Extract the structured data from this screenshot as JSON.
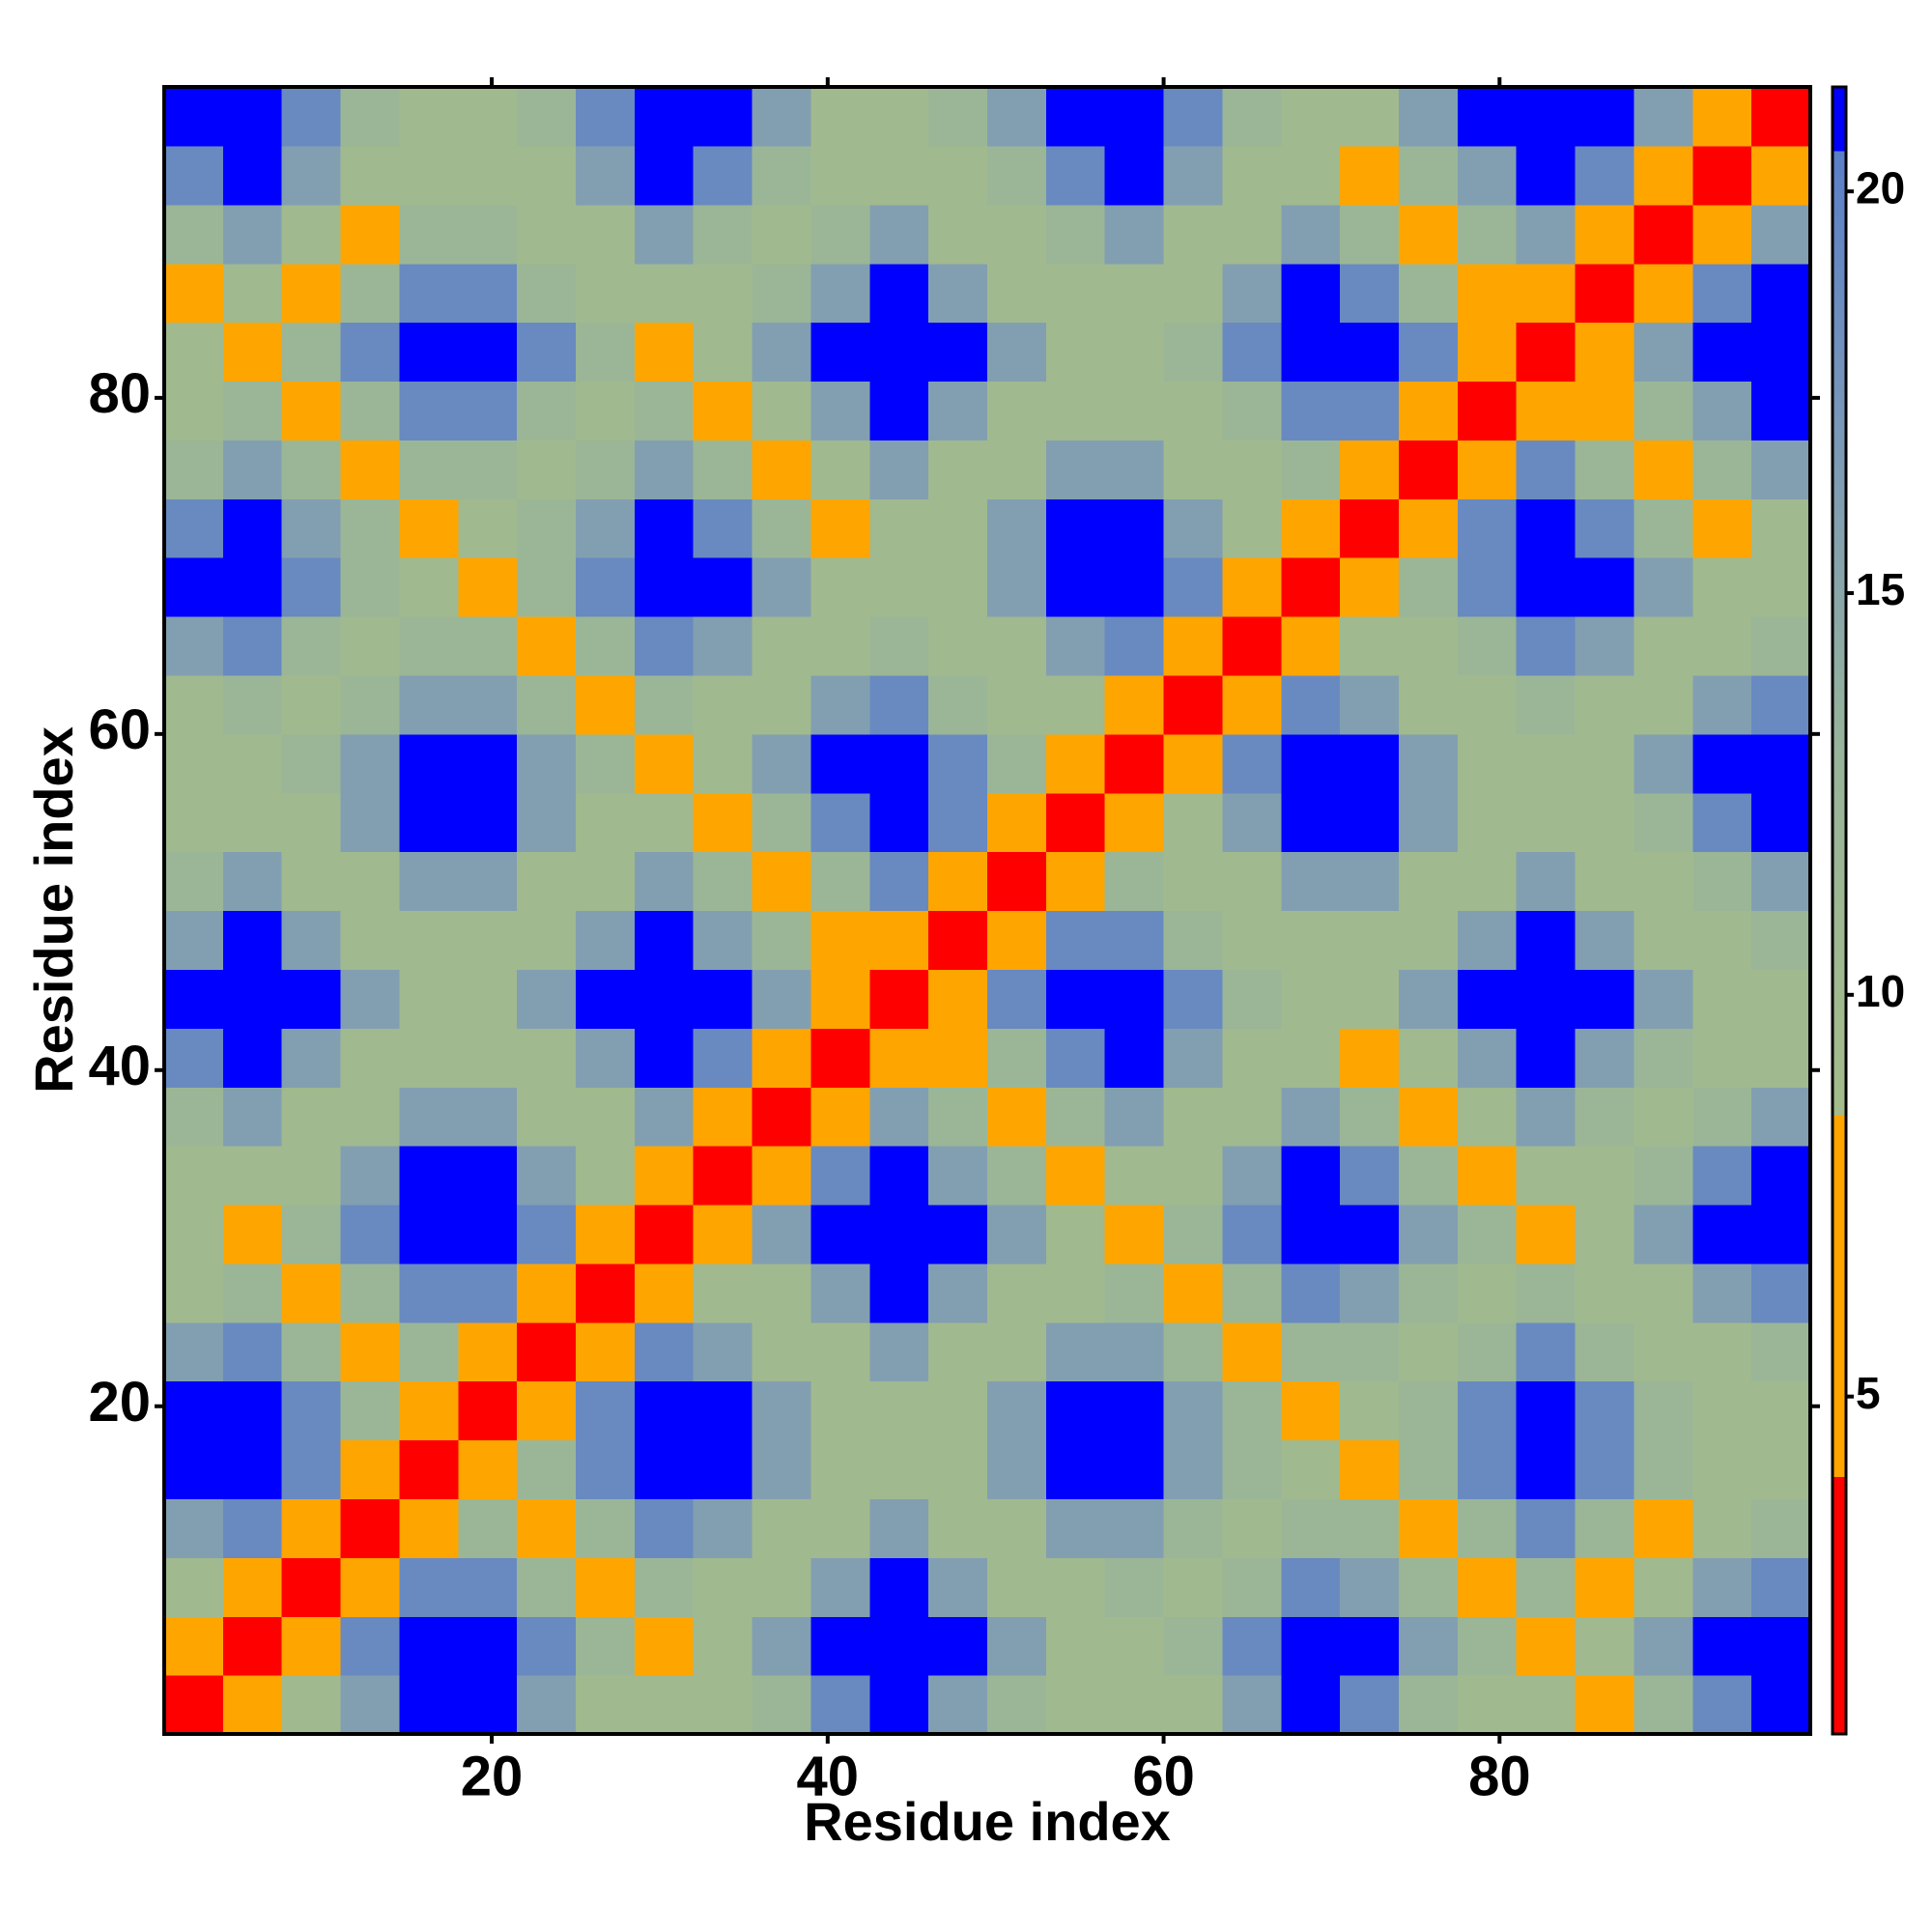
{
  "chart_data": {
    "type": "heatmap",
    "xlabel": "Residue index",
    "ylabel": "Residue index",
    "xlim": [
      0.5,
      98.5
    ],
    "ylim": [
      0.5,
      98.5
    ],
    "xticks": [
      20,
      40,
      60,
      80
    ],
    "yticks": [
      20,
      40,
      60,
      80
    ],
    "x": [
      2.25,
      5.75,
      9.25,
      12.75,
      16.25,
      19.75,
      23.25,
      26.75,
      30.25,
      33.75,
      37.25,
      40.75,
      44.25,
      47.75,
      51.25,
      54.75,
      58.25,
      61.75,
      65.25,
      68.75,
      72.25,
      75.75,
      79.25,
      82.75,
      86.25,
      89.75,
      93.25,
      96.75
    ],
    "y": [
      2.25,
      5.75,
      9.25,
      12.75,
      16.25,
      19.75,
      23.25,
      26.75,
      30.25,
      33.75,
      37.25,
      40.75,
      44.25,
      47.75,
      51.25,
      54.75,
      58.25,
      61.75,
      65.25,
      68.75,
      72.25,
      75.75,
      79.25,
      82.75,
      86.25,
      89.75,
      93.25,
      96.75
    ],
    "z": [
      [
        2,
        7,
        10,
        16,
        21,
        21,
        16,
        10,
        10,
        10,
        12,
        19,
        21,
        16,
        12,
        10,
        10,
        10,
        16,
        21,
        19,
        12,
        10,
        10,
        6,
        12,
        19,
        21
      ],
      [
        7,
        2,
        7,
        19,
        21,
        21,
        19,
        12,
        6,
        10,
        16,
        21,
        21,
        21,
        16,
        10,
        10,
        12,
        19,
        21,
        21,
        16,
        12,
        6,
        10,
        16,
        21,
        21
      ],
      [
        10,
        7,
        2,
        7,
        19,
        19,
        12,
        6,
        12,
        10,
        10,
        16,
        21,
        16,
        10,
        10,
        12,
        10,
        12,
        19,
        16,
        12,
        6,
        12,
        6,
        10,
        16,
        19
      ],
      [
        16,
        19,
        7,
        2,
        7,
        12,
        6,
        12,
        19,
        16,
        10,
        10,
        16,
        10,
        10,
        16,
        16,
        12,
        10,
        12,
        12,
        6,
        12,
        19,
        12,
        6,
        10,
        12
      ],
      [
        21,
        21,
        19,
        7,
        2,
        7,
        12,
        19,
        21,
        21,
        16,
        10,
        10,
        10,
        16,
        21,
        21,
        16,
        12,
        10,
        6,
        12,
        19,
        21,
        19,
        12,
        10,
        10
      ],
      [
        21,
        21,
        19,
        12,
        7,
        2,
        7,
        19,
        21,
        21,
        16,
        10,
        10,
        10,
        16,
        21,
        21,
        16,
        12,
        6,
        10,
        12,
        19,
        21,
        19,
        12,
        10,
        10
      ],
      [
        16,
        19,
        12,
        6,
        12,
        7,
        2,
        7,
        19,
        16,
        10,
        10,
        16,
        10,
        10,
        16,
        16,
        12,
        6,
        12,
        12,
        10,
        12,
        19,
        12,
        10,
        10,
        12
      ],
      [
        10,
        12,
        6,
        12,
        19,
        19,
        7,
        2,
        7,
        10,
        10,
        16,
        21,
        16,
        10,
        10,
        12,
        6,
        12,
        19,
        16,
        12,
        10,
        12,
        10,
        10,
        16,
        19
      ],
      [
        10,
        6,
        12,
        19,
        21,
        21,
        19,
        7,
        2,
        7,
        16,
        21,
        21,
        21,
        16,
        10,
        6,
        12,
        19,
        21,
        21,
        16,
        12,
        6,
        10,
        16,
        21,
        21
      ],
      [
        10,
        10,
        10,
        16,
        21,
        21,
        16,
        10,
        7,
        2,
        7,
        19,
        21,
        16,
        12,
        6,
        10,
        10,
        16,
        21,
        19,
        12,
        6,
        10,
        10,
        12,
        19,
        21
      ],
      [
        12,
        16,
        10,
        10,
        16,
        16,
        10,
        10,
        16,
        7,
        2,
        7,
        16,
        12,
        6,
        12,
        16,
        10,
        10,
        16,
        12,
        6,
        10,
        16,
        12,
        10,
        12,
        16
      ],
      [
        19,
        21,
        16,
        10,
        10,
        10,
        10,
        16,
        21,
        19,
        7,
        2,
        7,
        6,
        12,
        19,
        21,
        16,
        10,
        10,
        6,
        10,
        16,
        21,
        16,
        12,
        10,
        10
      ],
      [
        21,
        21,
        21,
        16,
        10,
        10,
        16,
        21,
        21,
        21,
        16,
        7,
        2,
        7,
        19,
        21,
        21,
        19,
        12,
        10,
        10,
        16,
        21,
        21,
        21,
        16,
        10,
        10
      ],
      [
        16,
        21,
        16,
        10,
        10,
        10,
        10,
        16,
        21,
        16,
        12,
        6,
        7,
        2,
        7,
        19,
        19,
        12,
        10,
        10,
        10,
        10,
        16,
        21,
        16,
        10,
        10,
        12
      ],
      [
        12,
        16,
        10,
        10,
        16,
        16,
        10,
        10,
        16,
        12,
        6,
        12,
        19,
        7,
        2,
        7,
        12,
        10,
        10,
        16,
        16,
        10,
        10,
        16,
        10,
        10,
        12,
        16
      ],
      [
        10,
        10,
        10,
        16,
        21,
        21,
        16,
        10,
        10,
        6,
        12,
        19,
        21,
        19,
        7,
        2,
        7,
        10,
        16,
        21,
        21,
        16,
        10,
        10,
        10,
        12,
        19,
        21
      ],
      [
        10,
        10,
        12,
        16,
        21,
        21,
        16,
        12,
        6,
        10,
        16,
        21,
        21,
        19,
        12,
        7,
        2,
        7,
        19,
        21,
        21,
        16,
        10,
        10,
        10,
        16,
        21,
        21
      ],
      [
        10,
        12,
        10,
        12,
        16,
        16,
        12,
        6,
        12,
        10,
        10,
        16,
        19,
        12,
        10,
        10,
        7,
        2,
        7,
        19,
        16,
        10,
        10,
        12,
        10,
        10,
        16,
        19
      ],
      [
        16,
        19,
        12,
        10,
        12,
        12,
        6,
        12,
        19,
        16,
        10,
        10,
        12,
        10,
        10,
        16,
        19,
        7,
        2,
        7,
        10,
        10,
        12,
        19,
        16,
        10,
        10,
        12
      ],
      [
        21,
        21,
        19,
        12,
        10,
        6,
        12,
        19,
        21,
        21,
        16,
        10,
        10,
        10,
        16,
        21,
        21,
        19,
        7,
        2,
        7,
        12,
        19,
        21,
        21,
        16,
        10,
        10
      ],
      [
        19,
        21,
        16,
        12,
        6,
        10,
        12,
        16,
        21,
        19,
        12,
        6,
        10,
        10,
        16,
        21,
        21,
        16,
        10,
        7,
        2,
        7,
        19,
        21,
        19,
        12,
        6,
        10
      ],
      [
        12,
        16,
        12,
        6,
        12,
        12,
        10,
        12,
        16,
        12,
        6,
        10,
        16,
        10,
        10,
        16,
        16,
        10,
        10,
        12,
        7,
        2,
        7,
        19,
        12,
        6,
        12,
        16
      ],
      [
        10,
        12,
        6,
        12,
        19,
        19,
        12,
        10,
        12,
        6,
        10,
        16,
        21,
        16,
        10,
        10,
        10,
        10,
        12,
        19,
        19,
        7,
        2,
        7,
        6,
        12,
        16,
        21
      ],
      [
        10,
        6,
        12,
        19,
        21,
        21,
        19,
        12,
        6,
        10,
        16,
        21,
        21,
        21,
        16,
        10,
        10,
        12,
        19,
        21,
        21,
        19,
        7,
        2,
        7,
        16,
        21,
        21
      ],
      [
        6,
        10,
        6,
        12,
        19,
        19,
        12,
        10,
        10,
        10,
        12,
        16,
        21,
        16,
        10,
        10,
        10,
        10,
        16,
        21,
        19,
        12,
        6,
        7,
        2,
        7,
        19,
        21
      ],
      [
        12,
        16,
        10,
        6,
        12,
        12,
        10,
        10,
        16,
        12,
        10,
        12,
        16,
        10,
        10,
        12,
        16,
        10,
        10,
        16,
        12,
        6,
        12,
        16,
        7,
        2,
        7,
        16
      ],
      [
        19,
        21,
        16,
        10,
        10,
        10,
        10,
        16,
        21,
        19,
        12,
        10,
        10,
        10,
        12,
        19,
        21,
        16,
        10,
        10,
        6,
        12,
        16,
        21,
        19,
        7,
        2,
        7
      ],
      [
        21,
        21,
        19,
        12,
        10,
        10,
        12,
        19,
        21,
        21,
        16,
        10,
        10,
        12,
        16,
        21,
        21,
        19,
        12,
        10,
        10,
        16,
        21,
        21,
        21,
        16,
        7,
        2
      ]
    ],
    "clim": [
      0.8,
      21.3
    ],
    "cticks": [
      5,
      10,
      15,
      20
    ],
    "colorscale": [
      [
        0.8,
        "#ff0000"
      ],
      [
        4,
        "#ff0000"
      ],
      [
        4,
        "#ffa500"
      ],
      [
        8.5,
        "#ffa500"
      ],
      [
        8.5,
        "#a4bc8a"
      ],
      [
        13,
        "#98b49a"
      ],
      [
        17,
        "#7a98b8"
      ],
      [
        20.5,
        "#5a7fc8"
      ],
      [
        20.5,
        "#0000ff"
      ],
      [
        21.3,
        "#0000ff"
      ]
    ]
  }
}
